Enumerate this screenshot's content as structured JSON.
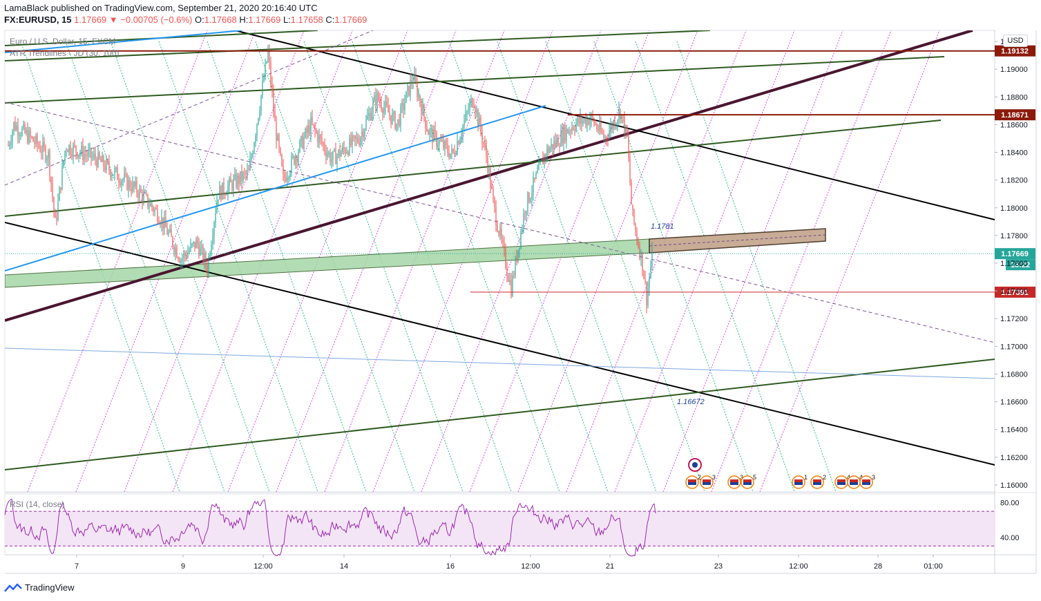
{
  "header": {
    "publisher_line": "LamaBlack published on TradingView.com, September 21, 2020 20:16:40 UTC",
    "symbol": "FX:EURUSD, 15",
    "last": "1.17669",
    "change": "▼ −0.00705 (−0.6%)",
    "o_label": "O:",
    "o_value": "1.17668",
    "h_label": "H:",
    "h_value": "1.17669",
    "l_label": "L:",
    "l_value": "1.17658",
    "c_label": "C:",
    "c_value": "1.17669"
  },
  "legend": {
    "instrument": "Euro / U.S. Dollar, 15, FXCM",
    "indicator": "ATR Trendlines - JD (30, 100)",
    "rsi": "RSI (14, close)"
  },
  "currency": "USD",
  "footer": {
    "brand": "TradingView"
  },
  "colors": {
    "up": "#26a69a",
    "down": "#ef5350",
    "resistance": "#8b1a0a",
    "trend_purple": "#4a1530",
    "trend_green": "#2e5a1f",
    "trend_black": "#000000",
    "trend_blue": "#2196f3",
    "zone_green": "#a5d6a7",
    "zone_brown": "#c4a48a",
    "rsi_line": "#9c27b0",
    "rsi_band": "#f3e5f5"
  },
  "chart_data": {
    "type": "candlestick",
    "symbol": "EURUSD",
    "timeframe": "15",
    "ylim": [
      1.1595,
      1.1928
    ],
    "y_ticks": [
      "1.19200",
      "1.19000",
      "1.18800",
      "1.18600",
      "1.18400",
      "1.18200",
      "1.18000",
      "1.17800",
      "1.17600",
      "1.17400",
      "1.17200",
      "1.17000",
      "1.16800",
      "1.16600",
      "1.16400",
      "1.16200",
      "1.16000"
    ],
    "x_ticks": [
      "7",
      "9",
      "12:00",
      "14",
      "16",
      "12:00",
      "21",
      "23",
      "12:00",
      "28",
      "01:00"
    ],
    "price_levels": [
      {
        "label": "1.19132",
        "value": 1.19132
      },
      {
        "label": "1.18671",
        "value": 1.18671
      },
      {
        "label": "1.17669",
        "value": 1.17669
      },
      {
        "label": "1.17391",
        "value": 1.17391
      }
    ],
    "countdown": "13:22",
    "annotations": [
      {
        "text": "1.1781",
        "value": 1.1781
      },
      {
        "text": "1.16672",
        "value": 1.16672
      }
    ],
    "event_markers": [
      "2",
      "3",
      "3",
      "5",
      "1",
      "2",
      "4",
      "4",
      "3"
    ],
    "rsi": {
      "label": "RSI (14, close)",
      "ylim": [
        20,
        90
      ],
      "ticks": [
        "80.00",
        "40.00"
      ],
      "band": [
        30,
        70
      ]
    }
  }
}
